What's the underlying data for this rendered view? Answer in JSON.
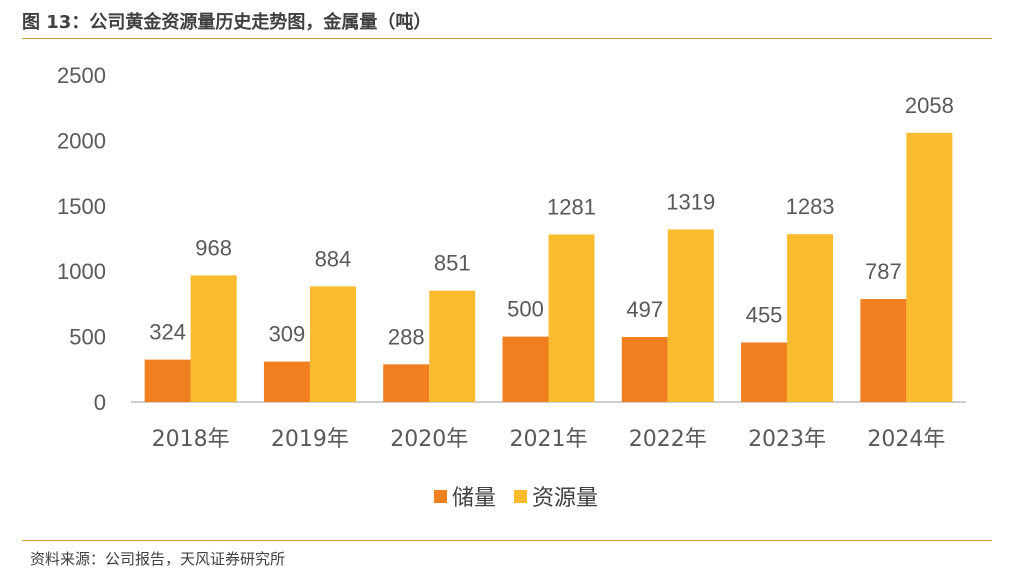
{
  "header": {
    "title": "图 13：公司黄金资源量历史走势图，金属量（吨）"
  },
  "footer": {
    "source": "资料来源：公司报告，天风证券研究所"
  },
  "colors": {
    "reserve": "#f07f1f",
    "resource": "#fbbb2e",
    "axis": "#bfbfbf",
    "rule": "#d99a3a"
  },
  "chart_data": {
    "type": "bar",
    "title": "公司黄金资源量历史走势图，金属量（吨）",
    "categories": [
      "2018年",
      "2019年",
      "2020年",
      "2021年",
      "2022年",
      "2023年",
      "2024年"
    ],
    "series": [
      {
        "name": "储量",
        "values": [
          324,
          309,
          288,
          500,
          497,
          455,
          787
        ]
      },
      {
        "name": "资源量",
        "values": [
          968,
          884,
          851,
          1281,
          1319,
          1283,
          2058
        ]
      }
    ],
    "ylim": [
      0,
      2500
    ],
    "yticks": [
      0,
      500,
      1000,
      1500,
      2000,
      2500
    ],
    "xlabel": "",
    "ylabel": "",
    "grid": false,
    "legend": "bottom-center"
  }
}
